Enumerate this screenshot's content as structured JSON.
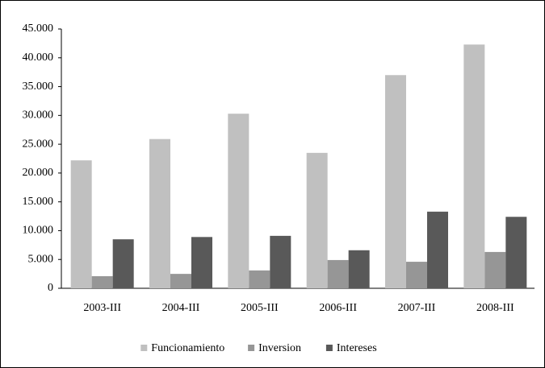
{
  "chart_data": {
    "type": "bar",
    "categories": [
      "2003-III",
      "2004-III",
      "2005-III",
      "2006-III",
      "2007-III",
      "2008-III"
    ],
    "series": [
      {
        "name": "Funcionamiento",
        "color": "#c0c0c0",
        "values": [
          22200,
          25900,
          30300,
          23500,
          37000,
          42300
        ]
      },
      {
        "name": "Inversion",
        "color": "#969696",
        "values": [
          2100,
          2500,
          3100,
          4900,
          4600,
          6300
        ]
      },
      {
        "name": "Intereses",
        "color": "#595959",
        "values": [
          8500,
          8900,
          9100,
          6600,
          13300,
          12400
        ]
      }
    ],
    "ylim": [
      0,
      45000
    ],
    "yticks": [
      0,
      {
        "value": 5000,
        "label": "5.000"
      },
      {
        "value": 10000,
        "label": "10.000"
      },
      {
        "value": 15000,
        "label": "15.000"
      },
      {
        "value": 20000,
        "label": "20.000"
      },
      {
        "value": 25000,
        "label": "25.000"
      },
      {
        "value": 30000,
        "label": "30.000"
      },
      {
        "value": 35000,
        "label": "35.000"
      },
      {
        "value": 40000,
        "label": "40.000"
      },
      {
        "value": 45000,
        "label": "45.000"
      }
    ],
    "grid": false,
    "legend": "bottom"
  }
}
